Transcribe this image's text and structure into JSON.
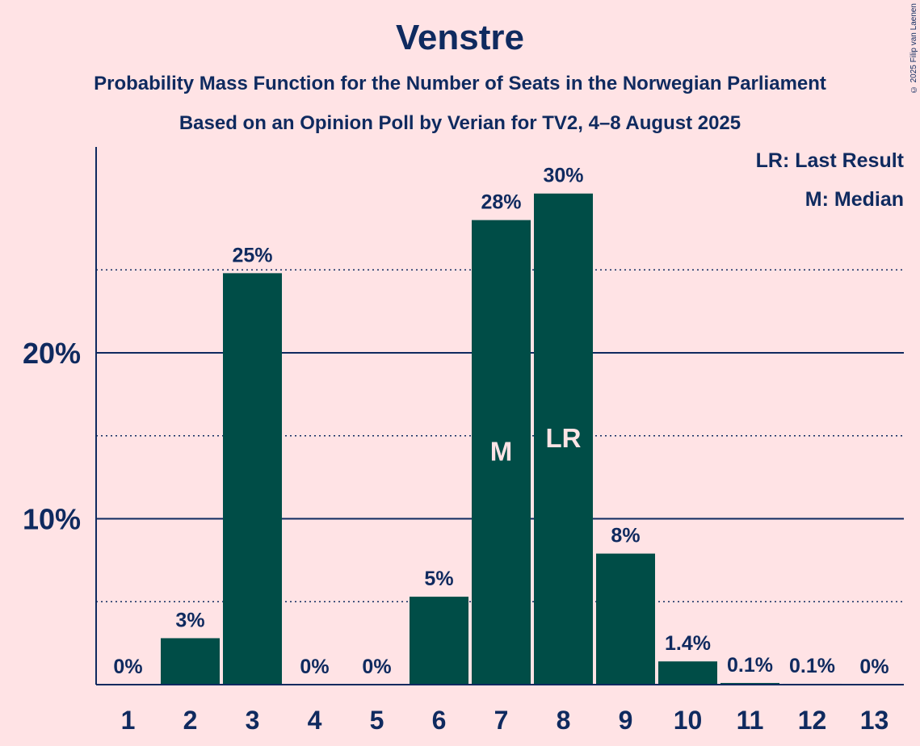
{
  "title": "Venstre",
  "subtitle1": "Probability Mass Function for the Number of Seats in the Norwegian Parliament",
  "subtitle2": "Based on an Opinion Poll by Verian for TV2, 4–8 August 2025",
  "copyright": "© 2025 Filip van Laenen",
  "legend": {
    "lr": "LR: Last Result",
    "m": "M: Median"
  },
  "colors": {
    "background": "#FFE3E5",
    "bar": "#004D47",
    "text": "#0F2A5F",
    "bar_marker_text": "#FFE3E5"
  },
  "chart_data": {
    "type": "bar",
    "categories": [
      "1",
      "2",
      "3",
      "4",
      "5",
      "6",
      "7",
      "8",
      "9",
      "10",
      "11",
      "12",
      "13"
    ],
    "values": [
      0,
      2.8,
      24.8,
      0,
      0,
      5.3,
      28.0,
      29.6,
      7.9,
      1.4,
      0.1,
      0.05,
      0
    ],
    "value_labels": [
      "0%",
      "3%",
      "25%",
      "0%",
      "0%",
      "5%",
      "28%",
      "30%",
      "8%",
      "1.4%",
      "0.1%",
      "0.1%",
      "0%"
    ],
    "bar_markers": {
      "7": "M",
      "8": "LR"
    },
    "y_ticks": [
      {
        "value": 10,
        "label": "10%"
      },
      {
        "value": 20,
        "label": "20%"
      }
    ],
    "y_minor_gridlines": [
      5,
      15,
      25
    ],
    "ylim": [
      0,
      32.4
    ],
    "grid": true
  }
}
